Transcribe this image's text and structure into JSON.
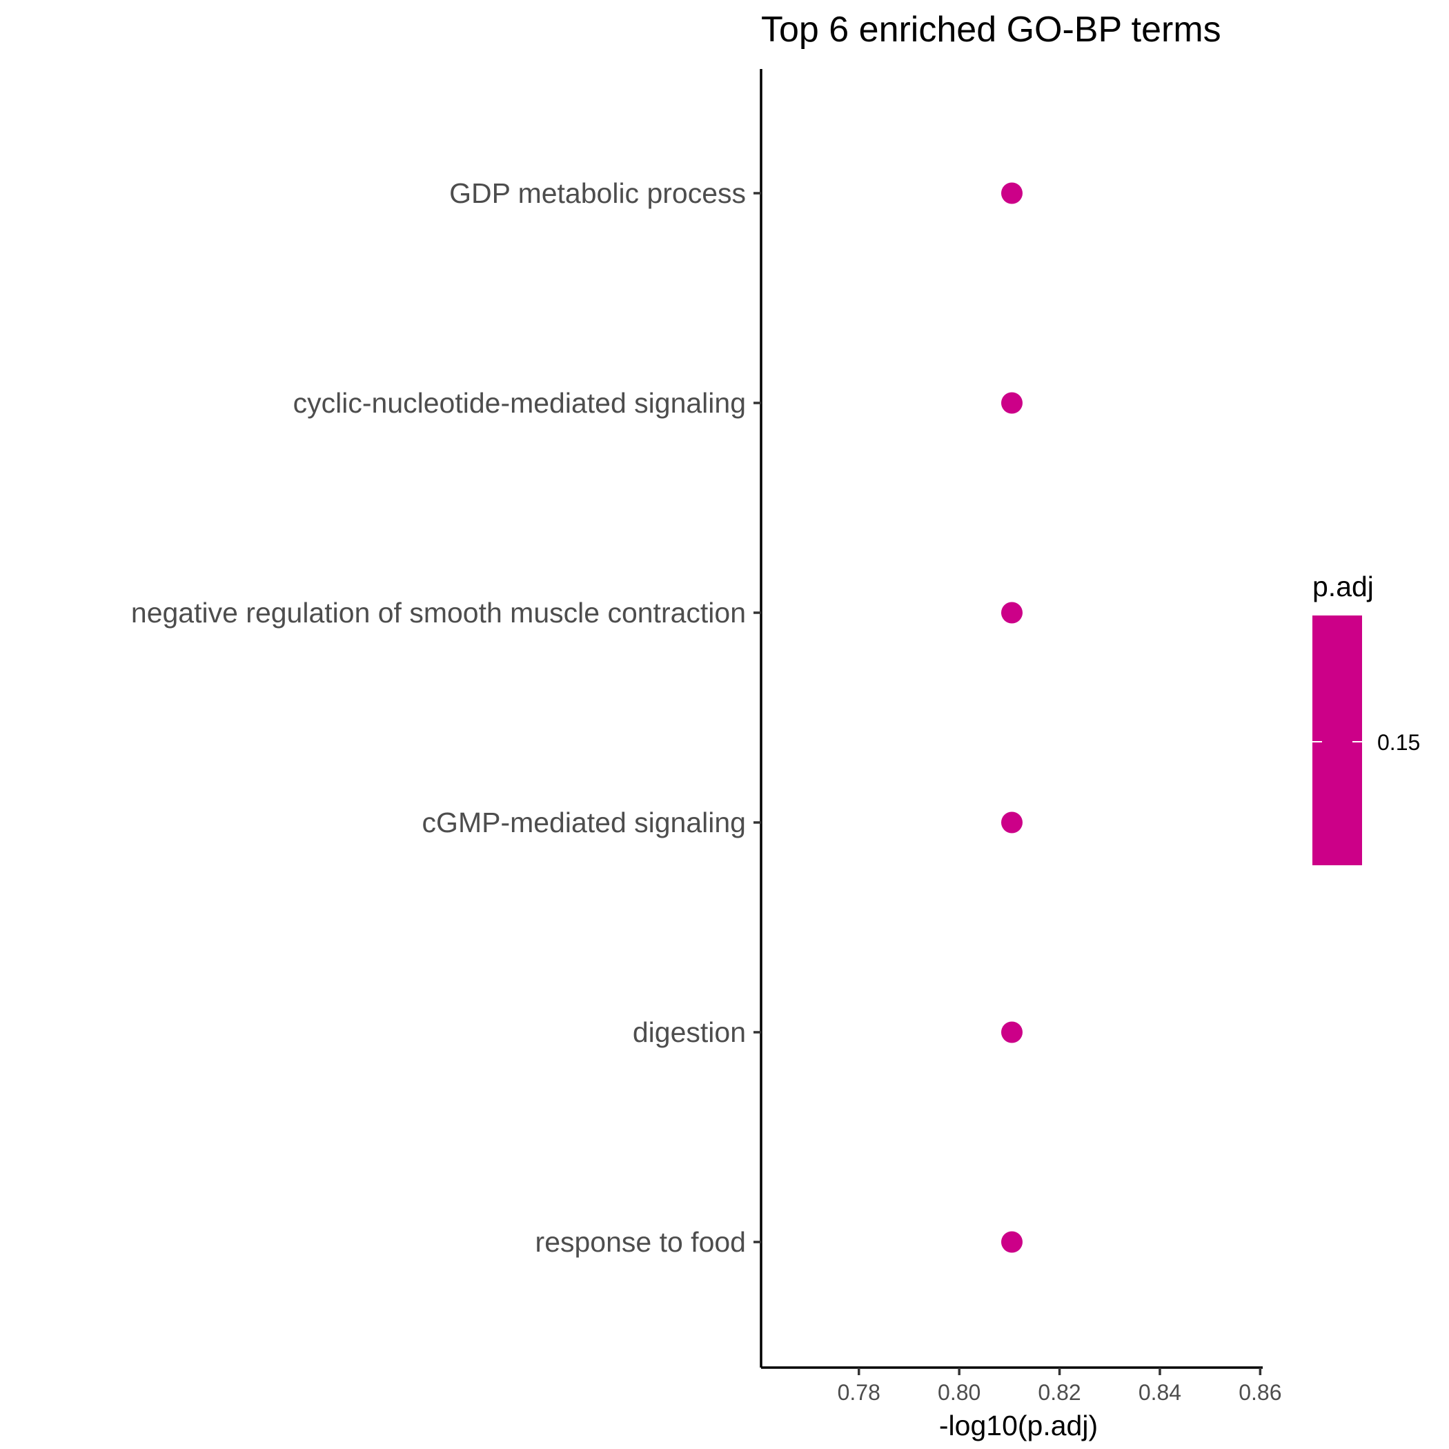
{
  "chart_data": {
    "type": "scatter",
    "title": "Top  6  enriched GO-BP terms",
    "xlabel": "-log10(p.adj)",
    "ylabel": "",
    "xlim": [
      0.7605,
      0.8605
    ],
    "x_ticks": [
      0.78,
      0.8,
      0.82,
      0.84,
      0.86
    ],
    "x_tick_labels": [
      "0.78",
      "0.80",
      "0.82",
      "0.84",
      "0.86"
    ],
    "categories": [
      "GDP metabolic process",
      "cyclic-nucleotide-mediated signaling",
      "negative regulation of smooth muscle contraction",
      "cGMP-mediated signaling",
      "digestion",
      "response to food"
    ],
    "x": [
      0.8105,
      0.8105,
      0.8105,
      0.8105,
      0.8105,
      0.8105
    ],
    "p_adj": [
      0.1546,
      0.1546,
      0.1546,
      0.1546,
      0.1546,
      0.1546
    ],
    "point_color": "#CC0088",
    "grid": false,
    "legend": {
      "title": "p.adj",
      "type": "colorbar",
      "placement": "right",
      "ticks": [
        "0.15"
      ],
      "color": "#CC0088"
    }
  }
}
